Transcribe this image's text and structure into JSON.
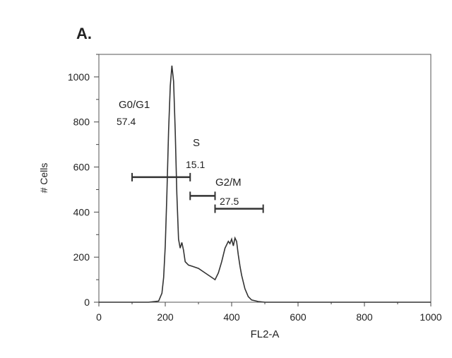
{
  "panel_label": "A.",
  "chart_data": {
    "type": "line",
    "xlabel": "FL2-A",
    "ylabel": "# Cells",
    "xlim": [
      0,
      1000
    ],
    "ylim": [
      0,
      1100
    ],
    "x_ticks": [
      0,
      200,
      400,
      600,
      800,
      1000
    ],
    "y_ticks": [
      0,
      200,
      400,
      600,
      800,
      1000
    ],
    "grid": false,
    "series": [
      {
        "x": [
          0,
          150,
          180,
          190,
          195,
          200,
          205,
          210,
          215,
          220,
          225,
          230,
          235,
          240,
          245,
          250,
          255,
          260,
          270,
          280,
          300,
          320,
          340,
          350,
          360,
          370,
          380,
          390,
          395,
          400,
          405,
          410,
          415,
          420,
          425,
          430,
          440,
          450,
          460,
          480,
          500,
          600,
          800,
          1000
        ],
        "y": [
          0,
          0,
          5,
          40,
          110,
          250,
          480,
          760,
          960,
          1050,
          980,
          760,
          480,
          280,
          240,
          265,
          230,
          180,
          165,
          160,
          150,
          130,
          110,
          100,
          130,
          180,
          240,
          270,
          260,
          280,
          250,
          285,
          270,
          210,
          160,
          120,
          60,
          25,
          10,
          3,
          0,
          0,
          0,
          0
        ]
      }
    ],
    "gates": [
      {
        "name": "G0/G1",
        "value": "57.4",
        "x_start": 100,
        "x_end": 275,
        "y": 555
      },
      {
        "name": "S",
        "value": "15.1",
        "x_start": 275,
        "x_end": 350,
        "y": 472
      },
      {
        "name": "G2/M",
        "value": "27.5",
        "x_start": 350,
        "x_end": 495,
        "y": 415
      }
    ]
  }
}
